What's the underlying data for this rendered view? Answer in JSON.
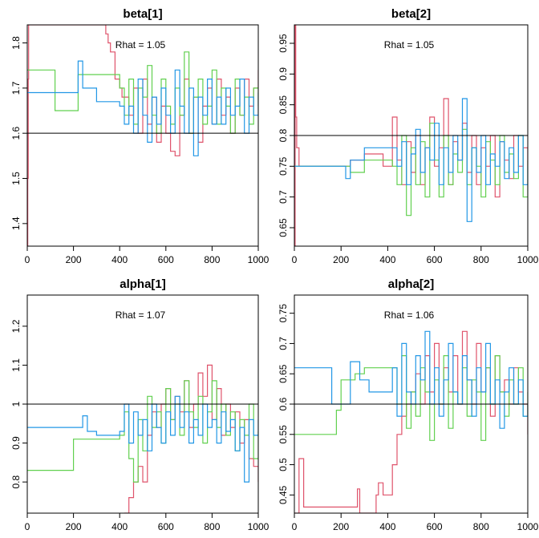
{
  "figure": {
    "description": "MCMC trace plots, 3 chains, 1000 iterations",
    "chain_colors": [
      "#DF536B",
      "#61D04F",
      "#2297E6"
    ]
  },
  "chart_data": [
    {
      "type": "line",
      "title": "beta[1]",
      "annotation": "Rhat = 1.05",
      "xlim": [
        0,
        1000
      ],
      "ylim": [
        1.35,
        1.84
      ],
      "xticks": [
        0,
        200,
        400,
        600,
        800,
        1000
      ],
      "yticks": [
        1.4,
        1.5,
        1.6,
        1.7,
        1.8
      ],
      "reference_line": 1.6,
      "series": [
        {
          "name": "chain-1",
          "color": "#DF536B",
          "x": [
            0,
            2,
            4,
            6,
            8,
            320,
            340,
            350,
            360,
            380,
            400,
            410,
            440,
            460,
            480,
            500,
            520,
            540,
            560,
            580,
            600,
            620,
            640,
            660,
            680,
            700,
            720,
            740,
            760,
            780,
            800,
            820,
            840,
            860,
            880,
            900,
            920,
            940,
            960,
            980,
            1000
          ],
          "y": [
            1.35,
            1.5,
            1.72,
            1.84,
            1.84,
            1.84,
            1.82,
            1.8,
            1.78,
            1.72,
            1.7,
            1.68,
            1.64,
            1.7,
            1.6,
            1.72,
            1.62,
            1.68,
            1.58,
            1.66,
            1.6,
            1.56,
            1.55,
            1.64,
            1.72,
            1.6,
            1.68,
            1.58,
            1.66,
            1.7,
            1.62,
            1.72,
            1.64,
            1.68,
            1.6,
            1.7,
            1.64,
            1.72,
            1.66,
            1.7,
            1.74
          ]
        },
        {
          "name": "chain-2",
          "color": "#61D04F",
          "x": [
            0,
            120,
            220,
            400,
            420,
            440,
            460,
            480,
            500,
            520,
            540,
            560,
            580,
            600,
            620,
            640,
            660,
            680,
            700,
            720,
            740,
            760,
            780,
            800,
            820,
            840,
            860,
            880,
            900,
            920,
            940,
            960,
            980,
            1000
          ],
          "y": [
            1.74,
            1.65,
            1.73,
            1.7,
            1.64,
            1.72,
            1.62,
            1.7,
            1.68,
            1.75,
            1.64,
            1.6,
            1.72,
            1.66,
            1.62,
            1.7,
            1.64,
            1.78,
            1.6,
            1.68,
            1.72,
            1.62,
            1.66,
            1.74,
            1.62,
            1.7,
            1.66,
            1.6,
            1.72,
            1.64,
            1.68,
            1.62,
            1.7,
            1.66
          ]
        },
        {
          "name": "chain-3",
          "color": "#2297E6",
          "x": [
            0,
            210,
            220,
            240,
            300,
            400,
            420,
            440,
            460,
            480,
            500,
            520,
            540,
            560,
            580,
            600,
            620,
            640,
            660,
            680,
            700,
            720,
            740,
            760,
            780,
            800,
            820,
            840,
            860,
            880,
            900,
            920,
            940,
            960,
            980,
            1000
          ],
          "y": [
            1.69,
            1.69,
            1.76,
            1.7,
            1.67,
            1.66,
            1.62,
            1.66,
            1.6,
            1.72,
            1.64,
            1.58,
            1.68,
            1.62,
            1.7,
            1.64,
            1.6,
            1.74,
            1.66,
            1.6,
            1.7,
            1.55,
            1.68,
            1.64,
            1.72,
            1.62,
            1.68,
            1.62,
            1.7,
            1.64,
            1.66,
            1.72,
            1.6,
            1.68,
            1.64,
            1.69
          ]
        }
      ]
    },
    {
      "type": "line",
      "title": "beta[2]",
      "annotation": "Rhat = 1.05",
      "xlim": [
        0,
        1000
      ],
      "ylim": [
        0.62,
        0.98
      ],
      "xticks": [
        0,
        200,
        400,
        600,
        800,
        1000
      ],
      "yticks": [
        0.65,
        0.7,
        0.75,
        0.8,
        0.85,
        0.9,
        0.95
      ],
      "reference_line": 0.8,
      "series": [
        {
          "name": "chain-1",
          "color": "#DF536B",
          "x": [
            0,
            3,
            6,
            10,
            20,
            220,
            240,
            300,
            380,
            420,
            440,
            460,
            480,
            500,
            520,
            540,
            560,
            580,
            600,
            620,
            640,
            660,
            680,
            700,
            720,
            740,
            760,
            780,
            800,
            820,
            840,
            860,
            880,
            900,
            920,
            940,
            960,
            980,
            1000
          ],
          "y": [
            0.62,
            0.98,
            0.83,
            0.78,
            0.75,
            0.75,
            0.76,
            0.77,
            0.75,
            0.83,
            0.76,
            0.72,
            0.79,
            0.74,
            0.8,
            0.72,
            0.78,
            0.83,
            0.75,
            0.78,
            0.86,
            0.72,
            0.79,
            0.76,
            0.82,
            0.74,
            0.8,
            0.72,
            0.78,
            0.75,
            0.8,
            0.7,
            0.79,
            0.76,
            0.73,
            0.8,
            0.75,
            0.78,
            0.75
          ]
        },
        {
          "name": "chain-2",
          "color": "#61D04F",
          "x": [
            0,
            220,
            240,
            300,
            380,
            420,
            440,
            460,
            480,
            500,
            520,
            540,
            560,
            580,
            600,
            620,
            640,
            660,
            680,
            700,
            720,
            740,
            760,
            780,
            800,
            820,
            840,
            860,
            880,
            900,
            920,
            940,
            960,
            980,
            1000
          ],
          "y": [
            0.75,
            0.75,
            0.74,
            0.76,
            0.76,
            0.75,
            0.72,
            0.8,
            0.67,
            0.78,
            0.72,
            0.79,
            0.7,
            0.82,
            0.76,
            0.7,
            0.8,
            0.72,
            0.77,
            0.74,
            0.81,
            0.72,
            0.78,
            0.75,
            0.7,
            0.79,
            0.76,
            0.72,
            0.8,
            0.74,
            0.77,
            0.73,
            0.8,
            0.7,
            0.76
          ]
        },
        {
          "name": "chain-3",
          "color": "#2297E6",
          "x": [
            0,
            210,
            220,
            240,
            300,
            380,
            420,
            440,
            460,
            480,
            500,
            520,
            540,
            560,
            580,
            600,
            620,
            640,
            660,
            680,
            700,
            720,
            740,
            760,
            780,
            800,
            820,
            840,
            860,
            880,
            900,
            920,
            940,
            960,
            980,
            1000
          ],
          "y": [
            0.75,
            0.75,
            0.73,
            0.76,
            0.78,
            0.78,
            0.78,
            0.75,
            0.79,
            0.72,
            0.77,
            0.81,
            0.74,
            0.78,
            0.76,
            0.82,
            0.72,
            0.78,
            0.74,
            0.8,
            0.76,
            0.86,
            0.66,
            0.78,
            0.74,
            0.8,
            0.72,
            0.77,
            0.75,
            0.79,
            0.73,
            0.78,
            0.74,
            0.8,
            0.72,
            0.75
          ]
        }
      ]
    },
    {
      "type": "line",
      "title": "alpha[1]",
      "annotation": "Rhat = 1.07",
      "xlim": [
        0,
        1000
      ],
      "ylim": [
        0.72,
        1.28
      ],
      "xticks": [
        0,
        200,
        400,
        600,
        800,
        1000
      ],
      "yticks": [
        0.8,
        0.9,
        1.0,
        1.1,
        1.2
      ],
      "reference_line": 1.0,
      "series": [
        {
          "name": "chain-1",
          "color": "#DF536B",
          "x": [
            420,
            440,
            460,
            480,
            500,
            520,
            540,
            560,
            580,
            600,
            620,
            640,
            660,
            680,
            700,
            720,
            740,
            760,
            780,
            800,
            820,
            840,
            860,
            880,
            900,
            920,
            940,
            960,
            980,
            1000
          ],
          "y": [
            0.72,
            0.76,
            0.8,
            0.84,
            0.8,
            0.92,
            0.98,
            0.94,
            1.0,
            1.04,
            0.96,
            1.02,
            0.98,
            1.06,
            0.94,
            1.0,
            1.08,
            1.02,
            1.1,
            0.96,
            1.04,
            0.92,
            1.0,
            0.94,
            0.98,
            0.9,
            0.96,
            0.86,
            0.84,
            0.8
          ]
        },
        {
          "name": "chain-2",
          "color": "#61D04F",
          "x": [
            0,
            170,
            200,
            400,
            420,
            440,
            460,
            480,
            500,
            520,
            540,
            560,
            580,
            600,
            620,
            640,
            660,
            680,
            700,
            720,
            740,
            760,
            780,
            800,
            820,
            840,
            860,
            880,
            900,
            920,
            940,
            960,
            980,
            1000
          ],
          "y": [
            0.83,
            0.83,
            0.91,
            0.92,
            0.98,
            0.86,
            0.8,
            0.96,
            0.88,
            1.02,
            0.94,
            0.98,
            0.9,
            1.04,
            0.96,
            1.0,
            0.92,
            1.06,
            0.98,
            0.94,
            1.02,
            0.9,
            0.98,
            1.06,
            0.94,
            1.0,
            0.92,
            0.98,
            0.88,
            0.96,
            0.92,
            1.0,
            0.86,
            0.93
          ]
        },
        {
          "name": "chain-3",
          "color": "#2297E6",
          "x": [
            0,
            210,
            240,
            260,
            300,
            400,
            420,
            440,
            460,
            480,
            500,
            520,
            540,
            560,
            580,
            600,
            620,
            640,
            660,
            680,
            700,
            720,
            740,
            760,
            780,
            800,
            820,
            840,
            860,
            880,
            900,
            920,
            940,
            960,
            980,
            1000
          ],
          "y": [
            0.94,
            0.94,
            0.97,
            0.93,
            0.92,
            0.93,
            1.0,
            0.9,
            0.98,
            0.92,
            0.96,
            0.88,
            1.0,
            0.94,
            0.9,
            0.98,
            0.92,
            1.02,
            0.94,
            0.98,
            0.9,
            0.96,
            0.92,
            1.0,
            0.94,
            0.96,
            0.9,
            0.98,
            0.93,
            0.96,
            0.88,
            0.94,
            0.8,
            0.96,
            0.92,
            0.96
          ]
        }
      ]
    },
    {
      "type": "line",
      "title": "alpha[2]",
      "annotation": "Rhat = 1.06",
      "xlim": [
        0,
        1000
      ],
      "ylim": [
        0.42,
        0.78
      ],
      "xticks": [
        0,
        200,
        400,
        600,
        800,
        1000
      ],
      "yticks": [
        0.45,
        0.5,
        0.55,
        0.6,
        0.65,
        0.7,
        0.75
      ],
      "reference_line": 0.6,
      "series": [
        {
          "name": "chain-1",
          "color": "#DF536B",
          "x": [
            0,
            20,
            40,
            80,
            260,
            270,
            280,
            350,
            360,
            380,
            400,
            420,
            440,
            460,
            480,
            500,
            520,
            540,
            560,
            580,
            600,
            620,
            640,
            660,
            680,
            700,
            720,
            740,
            760,
            780,
            800,
            820,
            840,
            860,
            880,
            900,
            920,
            940,
            960,
            980,
            1000
          ],
          "y": [
            0.42,
            0.51,
            0.43,
            0.43,
            0.43,
            0.46,
            0.42,
            0.45,
            0.47,
            0.45,
            0.45,
            0.5,
            0.55,
            0.58,
            0.6,
            0.62,
            0.65,
            0.6,
            0.68,
            0.62,
            0.7,
            0.6,
            0.66,
            0.62,
            0.68,
            0.6,
            0.72,
            0.64,
            0.6,
            0.7,
            0.62,
            0.66,
            0.58,
            0.68,
            0.62,
            0.64,
            0.6,
            0.66,
            0.62,
            0.6,
            0.55
          ]
        },
        {
          "name": "chain-2",
          "color": "#61D04F",
          "x": [
            0,
            160,
            180,
            200,
            260,
            300,
            420,
            440,
            460,
            480,
            500,
            520,
            540,
            560,
            580,
            600,
            620,
            640,
            660,
            680,
            700,
            720,
            740,
            760,
            780,
            800,
            820,
            840,
            860,
            880,
            900,
            920,
            940,
            960,
            980,
            1000
          ],
          "y": [
            0.55,
            0.55,
            0.59,
            0.64,
            0.65,
            0.66,
            0.66,
            0.6,
            0.68,
            0.56,
            0.62,
            0.58,
            0.66,
            0.62,
            0.54,
            0.64,
            0.6,
            0.68,
            0.56,
            0.62,
            0.6,
            0.66,
            0.58,
            0.64,
            0.62,
            0.54,
            0.66,
            0.6,
            0.68,
            0.62,
            0.58,
            0.64,
            0.6,
            0.66,
            0.58,
            0.62
          ]
        },
        {
          "name": "chain-3",
          "color": "#2297E6",
          "x": [
            0,
            140,
            160,
            240,
            280,
            320,
            360,
            420,
            440,
            460,
            480,
            500,
            520,
            540,
            560,
            580,
            600,
            620,
            640,
            660,
            680,
            700,
            720,
            740,
            760,
            780,
            800,
            820,
            840,
            860,
            880,
            900,
            920,
            940,
            960,
            980,
            1000
          ],
          "y": [
            0.66,
            0.66,
            0.6,
            0.67,
            0.64,
            0.62,
            0.62,
            0.66,
            0.58,
            0.7,
            0.62,
            0.6,
            0.68,
            0.64,
            0.72,
            0.6,
            0.66,
            0.58,
            0.64,
            0.7,
            0.62,
            0.6,
            0.68,
            0.64,
            0.58,
            0.66,
            0.62,
            0.7,
            0.6,
            0.64,
            0.56,
            0.62,
            0.66,
            0.6,
            0.64,
            0.58,
            0.6
          ]
        }
      ]
    }
  ]
}
